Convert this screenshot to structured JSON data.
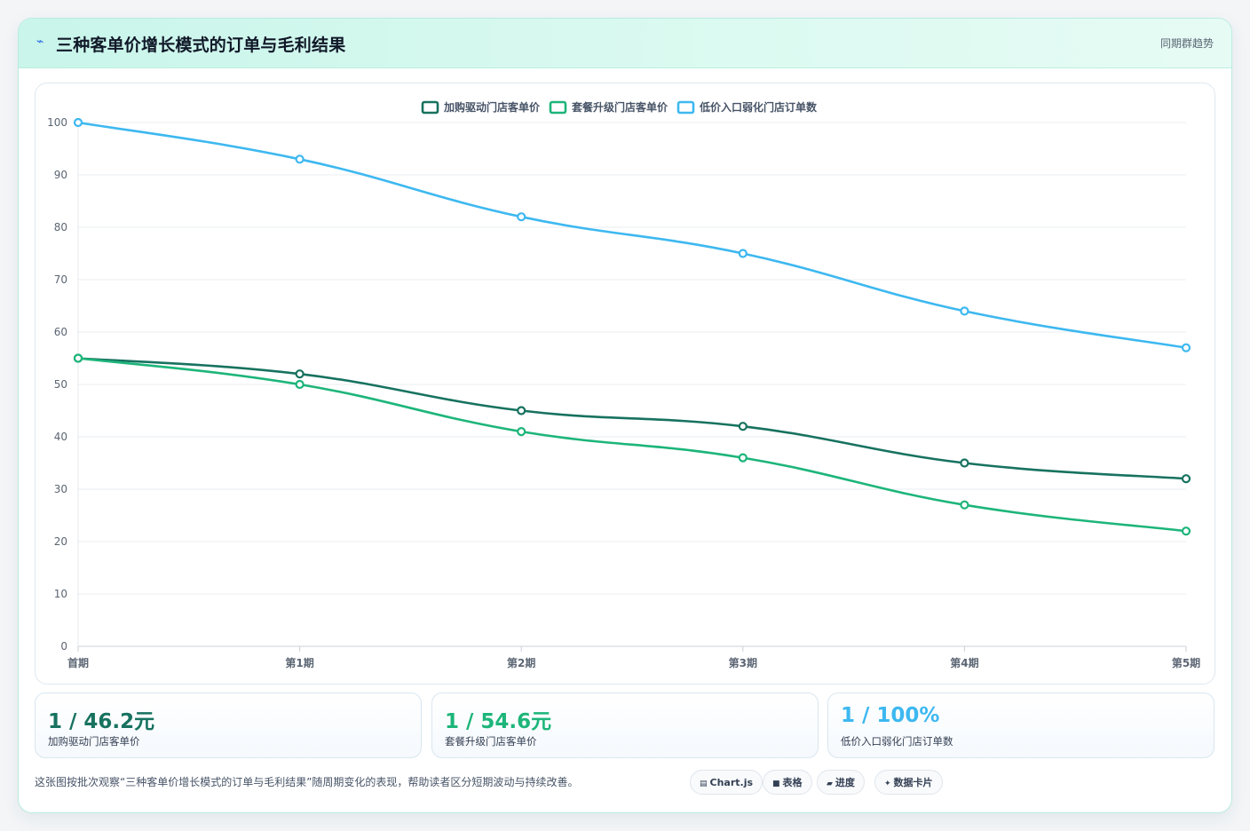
{
  "header": {
    "icon": "lightning-icon",
    "title": "三种客单价增长模式的订单与毛利结果",
    "tag": "同期群趋势"
  },
  "chart_data": {
    "type": "line",
    "categories": [
      "首期",
      "第1期",
      "第2期",
      "第3期",
      "第4期",
      "第5期"
    ],
    "series": [
      {
        "name": "加购驱动门店客单价",
        "color": "#17725f",
        "values": [
          55,
          52,
          45,
          42,
          35,
          32
        ]
      },
      {
        "name": "套餐升级门店客单价",
        "color": "#1db57a",
        "values": [
          55,
          50,
          41,
          36,
          27,
          22
        ]
      },
      {
        "name": "低价入口弱化门店订单数",
        "color": "#3db8f0",
        "values": [
          100,
          93,
          82,
          75,
          64,
          57
        ]
      }
    ],
    "ylim": [
      0,
      100
    ],
    "yticks": [
      0,
      10,
      20,
      30,
      40,
      50,
      60,
      70,
      80,
      90,
      100
    ],
    "grid": true,
    "legend_position": "top-center"
  },
  "stats": [
    {
      "value": "1 / 46.2元",
      "label": "加购驱动门店客单价",
      "color": "#17725f"
    },
    {
      "value": "1 / 54.6元",
      "label": "套餐升级门店客单价",
      "color": "#1db57a"
    },
    {
      "value": "1 / 100%",
      "label": "低价入口弱化门店订单数",
      "color": "#3db8f0"
    }
  ],
  "footer": {
    "note": "这张图按批次观察“三种客单价增长模式的订单与毛利结果”随周期变化的表现，帮助读者区分短期波动与持续改善。",
    "chips": [
      {
        "icon": "chart-icon",
        "glyph": "▤",
        "label": "Chart.js"
      },
      {
        "icon": "table-icon",
        "glyph": "■",
        "label": "表格"
      },
      {
        "icon": "progress-icon",
        "glyph": "▰",
        "label": "进度"
      },
      {
        "icon": "sparkle-icon",
        "glyph": "✦",
        "label": "数据卡片"
      }
    ]
  }
}
